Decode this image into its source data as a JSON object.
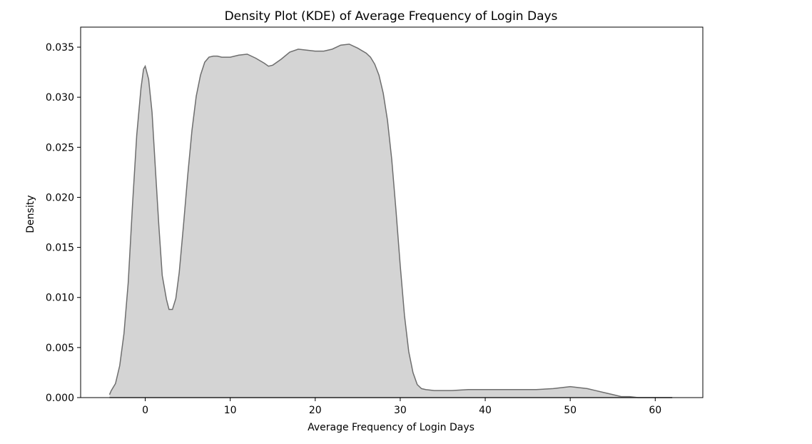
{
  "chart_data": {
    "type": "area",
    "title": "Density Plot (KDE) of Average Frequency of Login Days",
    "xlabel": "Average Frequency of Login Days",
    "ylabel": "Density",
    "xlim": [
      -7.6,
      65.6
    ],
    "ylim": [
      0,
      0.037
    ],
    "xticks": [
      0,
      10,
      20,
      30,
      40,
      50,
      60
    ],
    "xtick_labels": [
      "0",
      "10",
      "20",
      "30",
      "40",
      "50",
      "60"
    ],
    "yticks": [
      0,
      0.005,
      0.01,
      0.015,
      0.02,
      0.025,
      0.03,
      0.035
    ],
    "ytick_labels": [
      "0.000",
      "0.005",
      "0.010",
      "0.015",
      "0.020",
      "0.025",
      "0.030",
      "0.035"
    ],
    "grid": false,
    "fill_color": "#d4d4d4",
    "line_color": "#6e6e6e",
    "series": [
      {
        "x": [
          -4.2,
          -4.0,
          -3.5,
          -3.0,
          -2.5,
          -2.0,
          -1.5,
          -1.0,
          -0.5,
          -0.2,
          0.0,
          0.4,
          0.8,
          1.2,
          1.6,
          2.0,
          2.5,
          2.8,
          3.2,
          3.6,
          4.0,
          4.5,
          5.0,
          5.5,
          6.0,
          6.5,
          7.0,
          7.5,
          8.0,
          8.5,
          9.0,
          10.0,
          11.0,
          12.0,
          13.0,
          14.0,
          14.5,
          15.0,
          16.0,
          17.0,
          18.0,
          19.0,
          20.0,
          21.0,
          22.0,
          23.0,
          24.0,
          25.0,
          26.0,
          26.5,
          27.0,
          27.5,
          28.0,
          28.5,
          29.0,
          29.5,
          30.0,
          30.5,
          31.0,
          31.5,
          32.0,
          32.5,
          33.0,
          34.0,
          35.0,
          36.0,
          38.0,
          40.0,
          42.0,
          44.0,
          46.0,
          48.0,
          49.0,
          50.0,
          51.0,
          52.0,
          53.0,
          54.0,
          55.0,
          56.0,
          57.0,
          58.0,
          60.0,
          62.0
        ],
        "y": [
          0.0003,
          0.0007,
          0.0014,
          0.0032,
          0.0064,
          0.0115,
          0.0192,
          0.0262,
          0.0309,
          0.0328,
          0.0331,
          0.0318,
          0.0285,
          0.0228,
          0.0172,
          0.0122,
          0.0098,
          0.0088,
          0.0088,
          0.0099,
          0.0125,
          0.0172,
          0.0222,
          0.0267,
          0.0301,
          0.0322,
          0.0335,
          0.034,
          0.0341,
          0.0341,
          0.034,
          0.034,
          0.0342,
          0.0343,
          0.0339,
          0.0334,
          0.0331,
          0.0332,
          0.0338,
          0.0345,
          0.0348,
          0.0347,
          0.0346,
          0.0346,
          0.0348,
          0.0352,
          0.0353,
          0.0349,
          0.0344,
          0.034,
          0.0333,
          0.0322,
          0.0304,
          0.0277,
          0.0238,
          0.0187,
          0.0132,
          0.0082,
          0.0046,
          0.0025,
          0.0013,
          0.0009,
          0.0008,
          0.0007,
          0.0007,
          0.0007,
          0.0008,
          0.0008,
          0.0008,
          0.0008,
          0.0008,
          0.0009,
          0.001,
          0.0011,
          0.001,
          0.0009,
          0.0007,
          0.0005,
          0.0003,
          0.0001,
          0.0001,
          0.0,
          0.0,
          0.0
        ]
      }
    ]
  }
}
